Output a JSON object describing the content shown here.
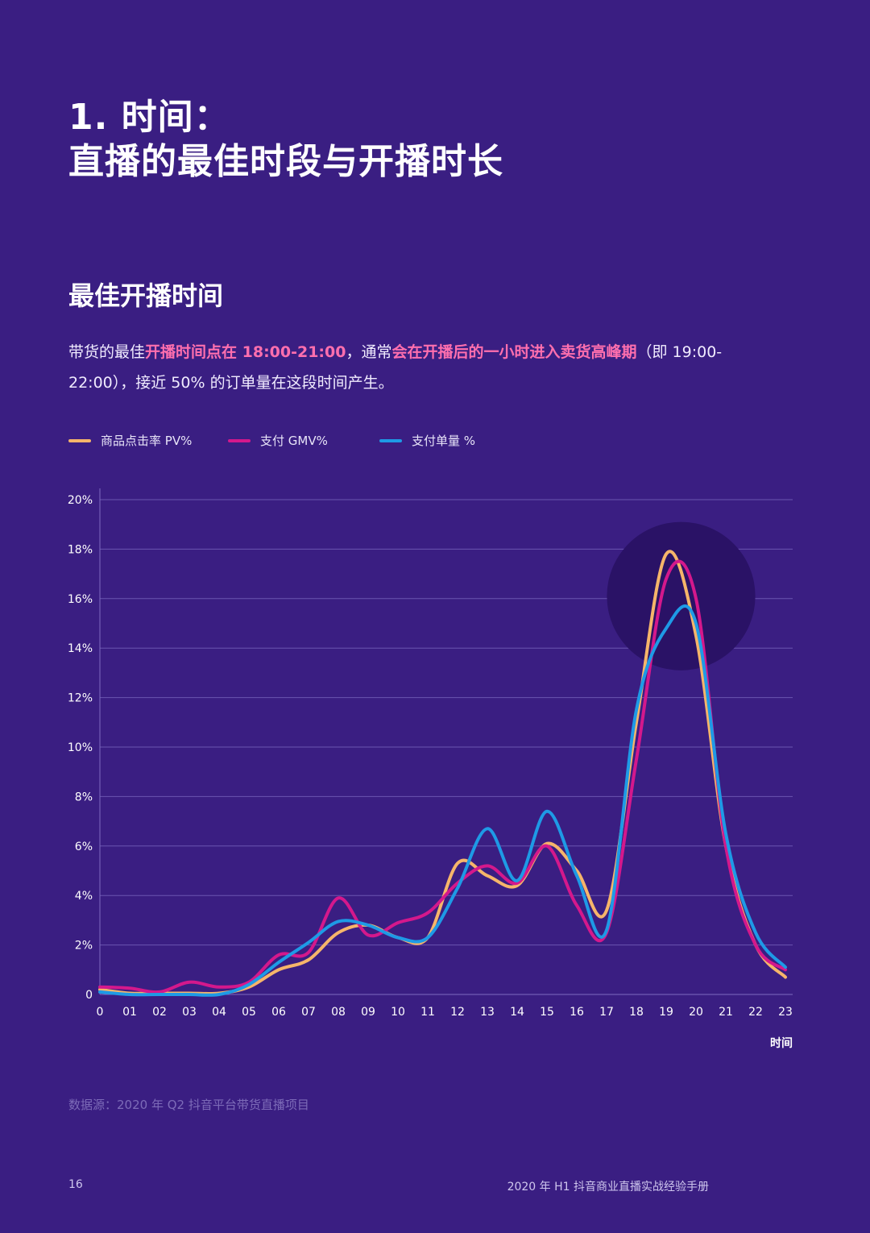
{
  "title": {
    "line1": "1. 时间：",
    "line2": "直播的最佳时段与开播时长"
  },
  "section_title": "最佳开播时间",
  "paragraph": {
    "p1": "带货的最佳",
    "p2": "开播时间点在 18:00-21:00",
    "p3": "，通常",
    "p4": "会在开播后的一小时进入卖货高峰期",
    "p5": "（即 19:00-22:00），接近 50% 的订单量在这段时间产生。"
  },
  "source_note": "数据源：2020 年 Q2 抖音平台带货直播项目",
  "page_number": "16",
  "footer_title": "2020 年 H1 抖音商业直播实战经验手册",
  "colors": {
    "background": "#3a1e82",
    "gridline": "#6a55b0",
    "highlight_text": "#ff6fae",
    "pv": "#f6b56a",
    "gmv": "#d4188c",
    "orders": "#1e9ae6",
    "peak_circle": "#2a1266"
  },
  "chart_data": {
    "type": "line",
    "categories": [
      "0",
      "01",
      "02",
      "03",
      "04",
      "05",
      "06",
      "07",
      "08",
      "09",
      "10",
      "11",
      "12",
      "13",
      "14",
      "15",
      "16",
      "17",
      "18",
      "19",
      "20",
      "21",
      "22",
      "23"
    ],
    "xlabel": "时间",
    "ylabel": "",
    "ylim": [
      0,
      20
    ],
    "yticks": [
      0,
      2,
      4,
      6,
      8,
      10,
      12,
      14,
      16,
      18,
      20
    ],
    "ytick_labels": [
      "0",
      "2%",
      "4%",
      "6%",
      "8%",
      "10%",
      "12%",
      "14%",
      "16%",
      "18%",
      "20%"
    ],
    "grid": true,
    "legend_position": "top-left",
    "series": [
      {
        "name": "商品点击率 PV%",
        "color_key": "pv",
        "values": [
          0.2,
          0.05,
          0.05,
          0.05,
          0.05,
          0.3,
          1.0,
          1.4,
          2.5,
          2.8,
          2.3,
          2.3,
          5.3,
          4.8,
          4.4,
          6.1,
          5.0,
          3.4,
          11.0,
          17.8,
          14.5,
          6.0,
          2.0,
          0.7
        ]
      },
      {
        "name": "支付 GMV%",
        "color_key": "gmv",
        "values": [
          0.3,
          0.25,
          0.1,
          0.5,
          0.3,
          0.5,
          1.6,
          1.7,
          3.9,
          2.4,
          2.9,
          3.3,
          4.5,
          5.2,
          4.5,
          6.0,
          3.6,
          2.5,
          9.5,
          16.8,
          16.0,
          6.0,
          2.0,
          1.0
        ]
      },
      {
        "name": "支付单量 %",
        "color_key": "orders",
        "values": [
          0.1,
          0.0,
          0.0,
          0.0,
          0.0,
          0.4,
          1.3,
          2.1,
          2.95,
          2.8,
          2.3,
          2.3,
          4.3,
          6.7,
          4.6,
          7.4,
          4.8,
          2.6,
          11.5,
          14.8,
          15.0,
          6.5,
          2.5,
          1.1
        ]
      }
    ],
    "highlight": {
      "x_center": 19.5,
      "y_center": 16.1,
      "y_radius": 3.0,
      "label": ""
    }
  }
}
